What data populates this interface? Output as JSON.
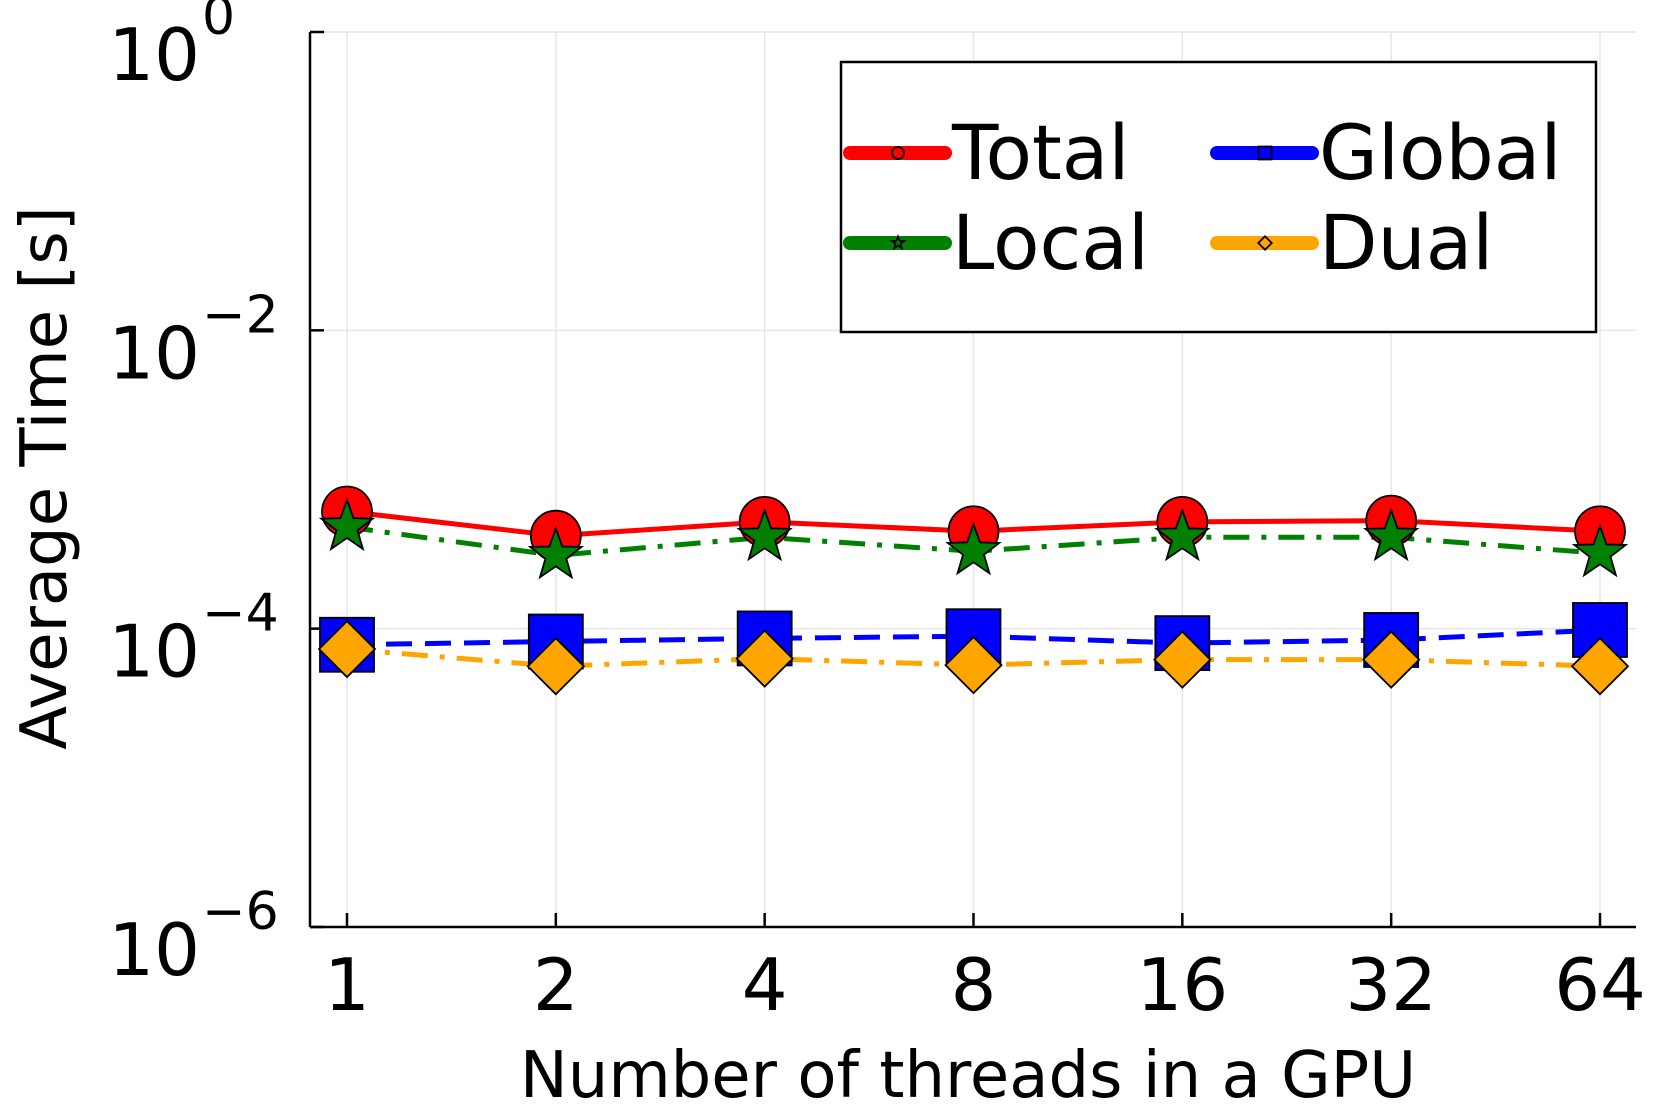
{
  "chart_data": {
    "type": "line",
    "title": "",
    "xlabel": "Number of threads in a GPU",
    "ylabel": "Average Time [s]",
    "x_scale": "log2",
    "y_scale": "log10",
    "categories": [
      "1",
      "2",
      "4",
      "8",
      "16",
      "32",
      "64"
    ],
    "x": [
      1,
      2,
      4,
      8,
      16,
      32,
      64
    ],
    "ylim": [
      1e-06,
      1
    ],
    "y_ticks": [
      {
        "value": 1e-06,
        "base": "10",
        "exp": "−6"
      },
      {
        "value": 0.0001,
        "base": "10",
        "exp": "−4"
      },
      {
        "value": 0.01,
        "base": "10",
        "exp": "−2"
      },
      {
        "value": 1,
        "base": "10",
        "exp": "0"
      }
    ],
    "grid": true,
    "legend": {
      "position": "top-right",
      "columns": 2
    },
    "series": [
      {
        "name": "Total",
        "color": "#ff0000",
        "line": "solid",
        "marker": "circle",
        "values": [
          0.00061,
          0.00042,
          0.00052,
          0.00045,
          0.00052,
          0.00053,
          0.00045
        ]
      },
      {
        "name": "Global",
        "color": "#0000ff",
        "line": "dashed",
        "marker": "square",
        "values": [
          7.8e-05,
          8.2e-05,
          8.6e-05,
          8.9e-05,
          8e-05,
          8.4e-05,
          9.8e-05
        ]
      },
      {
        "name": "Local",
        "color": "#008000",
        "line": "dashdot",
        "marker": "star",
        "values": [
          0.00048,
          0.00031,
          0.00041,
          0.00033,
          0.00041,
          0.00041,
          0.00032
        ]
      },
      {
        "name": "Dual",
        "color": "#ffa500",
        "line": "dashdot",
        "marker": "diamond",
        "values": [
          7.3e-05,
          5.6e-05,
          6.3e-05,
          5.7e-05,
          6.2e-05,
          6.2e-05,
          5.6e-05
        ]
      }
    ]
  }
}
